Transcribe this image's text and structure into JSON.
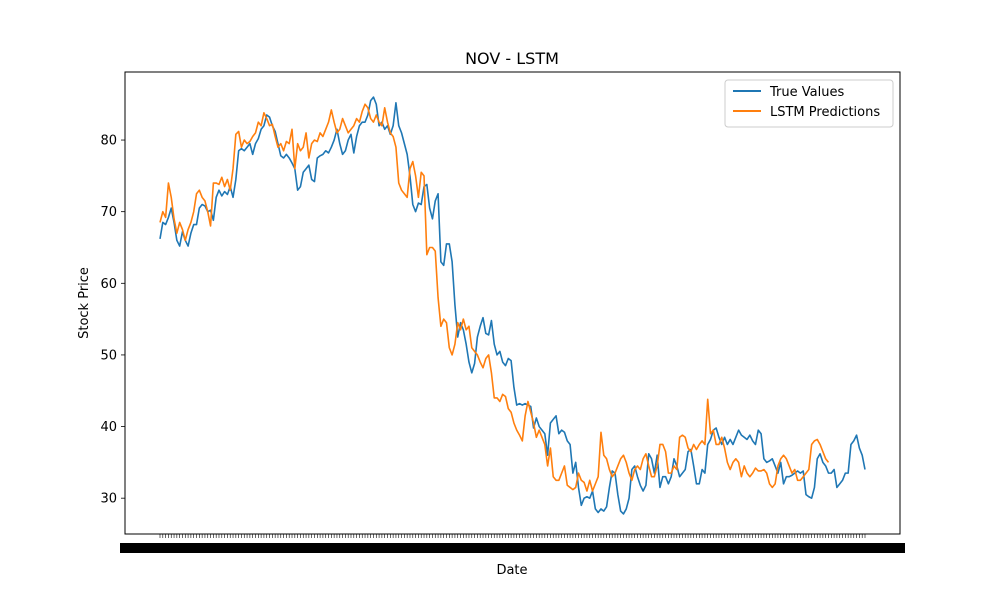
{
  "chart_data": {
    "type": "line",
    "title": "NOV - LSTM",
    "xlabel": "Date",
    "ylabel": "Stock Price",
    "ylim": [
      25.0,
      89.5
    ],
    "y_ticks": [
      30,
      40,
      50,
      60,
      70,
      80
    ],
    "x_tick_labels_note": "dense overlapping date labels (illegible)",
    "grid": false,
    "legend_position": "top-right",
    "series": [
      {
        "name": "True Values",
        "color": "#1f77b4",
        "values": [
          66.2,
          68.5,
          68.2,
          69.2,
          70.5,
          68.5,
          66.0,
          65.2,
          67.2,
          66.0,
          65.2,
          67.0,
          68.2,
          68.2,
          70.5,
          71.0,
          70.8,
          70.0,
          70.2,
          68.8,
          72.0,
          73.0,
          72.2,
          72.8,
          72.4,
          73.5,
          72.0,
          74.5,
          78.5,
          78.8,
          78.5,
          79.0,
          79.5,
          78.0,
          79.5,
          80.2,
          81.5,
          82.0,
          83.5,
          83.2,
          82.0,
          81.2,
          79.5,
          77.8,
          77.5,
          78.0,
          77.5,
          76.8,
          76.0,
          73.0,
          73.5,
          75.5,
          76.0,
          76.5,
          74.5,
          74.2,
          77.5,
          77.8,
          78.0,
          78.5,
          78.2,
          79.0,
          80.0,
          81.5,
          79.5,
          78.0,
          78.5,
          80.0,
          80.8,
          78.2,
          80.5,
          82.0,
          82.5,
          82.5,
          83.5,
          85.5,
          86.0,
          85.0,
          82.0,
          82.5,
          81.5,
          82.0,
          80.8,
          82.0,
          85.2,
          82.0,
          81.0,
          79.5,
          78.0,
          75.0,
          71.0,
          70.0,
          71.2,
          71.0,
          73.5,
          73.8,
          70.5,
          69.0,
          71.5,
          72.5,
          63.0,
          62.5,
          65.5,
          65.5,
          63.0,
          57.0,
          52.5,
          54.5,
          53.5,
          51.5,
          49.0,
          47.5,
          48.8,
          52.5,
          54.0,
          55.2,
          53.0,
          52.8,
          54.8,
          51.5,
          50.0,
          50.5,
          49.0,
          48.5,
          49.5,
          49.2,
          45.5,
          43.0,
          43.2,
          43.0,
          43.2,
          43.0,
          42.8,
          39.8,
          41.2,
          40.0,
          39.5,
          39.0,
          36.0,
          40.5,
          41.0,
          41.5,
          39.0,
          39.5,
          39.2,
          38.0,
          37.5,
          33.5,
          35.0,
          31.5,
          29.0,
          30.0,
          30.2,
          30.0,
          31.0,
          28.5,
          28.0,
          28.5,
          28.2,
          28.8,
          31.5,
          33.8,
          33.5,
          30.5,
          28.2,
          27.8,
          28.5,
          30.0,
          34.0,
          34.5,
          33.0,
          31.8,
          31.0,
          31.8,
          36.2,
          35.5,
          33.5,
          36.0,
          31.5,
          33.0,
          33.0,
          32.0,
          33.0,
          35.5,
          34.5,
          33.0,
          33.5,
          34.0,
          36.5,
          36.8,
          34.5,
          32.0,
          32.0,
          34.0,
          33.5,
          37.5,
          38.2,
          39.5,
          39.8,
          38.5,
          37.5,
          38.5,
          37.5,
          38.2,
          37.5,
          38.5,
          39.5,
          38.8,
          38.5,
          38.2,
          38.8,
          38.0,
          37.5,
          39.5,
          39.0,
          35.5,
          35.0,
          35.2,
          35.5,
          34.5,
          33.5,
          35.0,
          32.0,
          33.0,
          33.0,
          33.2,
          33.5,
          33.8,
          33.5,
          33.8,
          30.5,
          30.2,
          30.0,
          31.5,
          35.5,
          36.2,
          35.0,
          34.5,
          33.5,
          33.5,
          34.0,
          31.5,
          32.0,
          32.5,
          33.5,
          33.5,
          37.5,
          38.0,
          38.8,
          37.0,
          36.0,
          34.0
        ]
      },
      {
        "name": "LSTM Predictions",
        "color": "#ff7f0e",
        "values": [
          68.5,
          70.0,
          69.2,
          74.0,
          72.0,
          69.0,
          67.0,
          68.5,
          67.5,
          66.0,
          67.5,
          68.5,
          70.0,
          72.5,
          73.0,
          72.0,
          71.5,
          70.0,
          68.0,
          74.0,
          74.0,
          73.8,
          74.8,
          73.5,
          74.5,
          73.0,
          76.0,
          80.8,
          81.2,
          79.0,
          80.0,
          79.5,
          79.8,
          80.5,
          81.0,
          82.5,
          82.0,
          83.8,
          83.0,
          82.0,
          82.2,
          80.5,
          79.0,
          79.5,
          78.5,
          79.8,
          79.5,
          81.5,
          76.0,
          79.5,
          78.5,
          79.0,
          81.0,
          77.5,
          79.5,
          80.0,
          79.8,
          81.0,
          80.5,
          81.5,
          82.5,
          84.2,
          82.5,
          81.0,
          81.5,
          83.0,
          82.0,
          81.0,
          81.5,
          82.0,
          83.0,
          82.5,
          84.0,
          85.0,
          84.5,
          83.0,
          82.5,
          83.5,
          82.5,
          82.0,
          84.5,
          82.5,
          81.0,
          80.5,
          79.0,
          74.0,
          73.0,
          72.5,
          72.0,
          76.0,
          77.0,
          75.0,
          72.0,
          75.5,
          75.0,
          64.0,
          65.0,
          65.0,
          64.5,
          58.0,
          54.0,
          55.0,
          54.5,
          51.0,
          50.0,
          51.5,
          54.5,
          53.5,
          55.0,
          53.5,
          54.0,
          51.0,
          50.5,
          50.0,
          49.0,
          48.2,
          49.5,
          50.0,
          47.5,
          44.0,
          44.0,
          43.5,
          44.5,
          44.2,
          42.5,
          42.0,
          40.5,
          39.5,
          38.8,
          38.0,
          41.5,
          43.5,
          42.0,
          40.5,
          38.5,
          39.5,
          38.5,
          37.5,
          34.5,
          37.0,
          33.0,
          32.5,
          32.5,
          33.5,
          34.5,
          31.8,
          31.5,
          31.2,
          31.5,
          33.5,
          32.5,
          32.2,
          31.0,
          32.5,
          31.0,
          32.0,
          33.0,
          39.2,
          36.0,
          35.5,
          34.0,
          33.0,
          33.5,
          34.5,
          35.5,
          36.0,
          35.0,
          33.5,
          32.5,
          34.0,
          34.5,
          34.0,
          35.5,
          36.2,
          34.5,
          33.0,
          33.0,
          34.5,
          37.5,
          37.5,
          36.5,
          33.5,
          33.5,
          34.5,
          34.0,
          38.5,
          38.8,
          38.5,
          37.0,
          36.5,
          37.5,
          36.8,
          37.5,
          38.0,
          37.5,
          43.8,
          39.0,
          39.5,
          37.5,
          37.5,
          38.5,
          37.0,
          35.0,
          34.0,
          35.0,
          35.5,
          35.0,
          33.0,
          34.5,
          33.5,
          33.0,
          33.5,
          34.2,
          33.8,
          33.8,
          34.0,
          33.5,
          32.0,
          31.5,
          32.0,
          34.5,
          35.5,
          36.0,
          35.5,
          34.5,
          33.5,
          34.0,
          32.5,
          32.5,
          33.0,
          33.5,
          34.0,
          37.5,
          38.0,
          38.2,
          37.5,
          36.5,
          35.5,
          35.0
        ]
      }
    ]
  }
}
